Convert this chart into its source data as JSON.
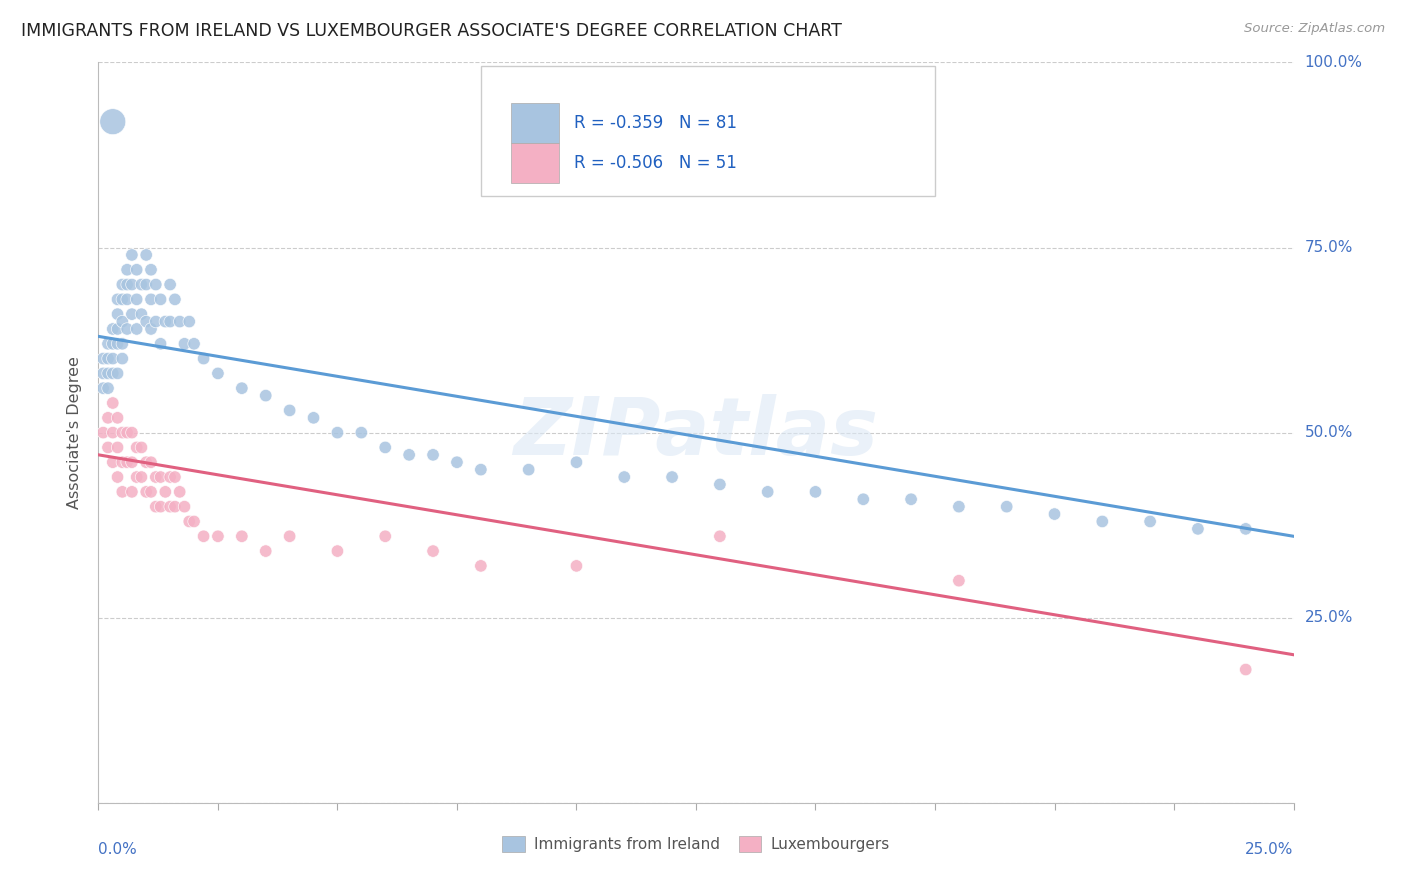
{
  "title": "IMMIGRANTS FROM IRELAND VS LUXEMBOURGER ASSOCIATE'S DEGREE CORRELATION CHART",
  "source": "Source: ZipAtlas.com",
  "ylabel": "Associate's Degree",
  "right_yticks": [
    "100.0%",
    "75.0%",
    "50.0%",
    "25.0%"
  ],
  "right_ytick_vals": [
    1.0,
    0.75,
    0.5,
    0.25
  ],
  "legend1_R": "-0.359",
  "legend1_N": "81",
  "legend2_R": "-0.506",
  "legend2_N": "51",
  "legend_label1": "Immigrants from Ireland",
  "legend_label2": "Luxembourgers",
  "blue_color": "#a8c4e0",
  "blue_line_color": "#5b9bd5",
  "pink_color": "#f4b0c4",
  "pink_line_color": "#e06080",
  "legend_R_color": "#2060c0",
  "watermark": "ZIPatlas",
  "xmin": 0.0,
  "xmax": 0.25,
  "ymin": 0.0,
  "ymax": 1.0,
  "blue_x": [
    0.001,
    0.001,
    0.001,
    0.002,
    0.002,
    0.002,
    0.002,
    0.003,
    0.003,
    0.003,
    0.003,
    0.004,
    0.004,
    0.004,
    0.004,
    0.004,
    0.005,
    0.005,
    0.005,
    0.005,
    0.005,
    0.006,
    0.006,
    0.006,
    0.006,
    0.007,
    0.007,
    0.007,
    0.008,
    0.008,
    0.008,
    0.009,
    0.009,
    0.01,
    0.01,
    0.01,
    0.011,
    0.011,
    0.011,
    0.012,
    0.012,
    0.013,
    0.013,
    0.014,
    0.015,
    0.015,
    0.016,
    0.017,
    0.018,
    0.019,
    0.02,
    0.022,
    0.025,
    0.03,
    0.035,
    0.04,
    0.045,
    0.05,
    0.055,
    0.06,
    0.065,
    0.07,
    0.075,
    0.08,
    0.09,
    0.1,
    0.11,
    0.12,
    0.13,
    0.14,
    0.15,
    0.16,
    0.17,
    0.18,
    0.19,
    0.2,
    0.21,
    0.22,
    0.23,
    0.24,
    0.003
  ],
  "blue_y": [
    0.6,
    0.58,
    0.56,
    0.6,
    0.62,
    0.58,
    0.56,
    0.64,
    0.62,
    0.6,
    0.58,
    0.68,
    0.66,
    0.64,
    0.62,
    0.58,
    0.7,
    0.68,
    0.65,
    0.62,
    0.6,
    0.72,
    0.7,
    0.68,
    0.64,
    0.74,
    0.7,
    0.66,
    0.72,
    0.68,
    0.64,
    0.7,
    0.66,
    0.74,
    0.7,
    0.65,
    0.72,
    0.68,
    0.64,
    0.7,
    0.65,
    0.68,
    0.62,
    0.65,
    0.7,
    0.65,
    0.68,
    0.65,
    0.62,
    0.65,
    0.62,
    0.6,
    0.58,
    0.56,
    0.55,
    0.53,
    0.52,
    0.5,
    0.5,
    0.48,
    0.47,
    0.47,
    0.46,
    0.45,
    0.45,
    0.46,
    0.44,
    0.44,
    0.43,
    0.42,
    0.42,
    0.41,
    0.41,
    0.4,
    0.4,
    0.39,
    0.38,
    0.38,
    0.37,
    0.37,
    0.92
  ],
  "blue_sizes_scale": [
    80,
    80,
    80,
    80,
    80,
    80,
    80,
    80,
    80,
    80,
    80,
    80,
    80,
    80,
    80,
    80,
    80,
    80,
    80,
    80,
    80,
    80,
    80,
    80,
    80,
    80,
    80,
    80,
    80,
    80,
    80,
    80,
    80,
    80,
    80,
    80,
    80,
    80,
    80,
    80,
    80,
    80,
    80,
    80,
    80,
    80,
    80,
    80,
    80,
    80,
    80,
    80,
    80,
    80,
    80,
    80,
    80,
    80,
    80,
    80,
    80,
    80,
    80,
    80,
    80,
    80,
    80,
    80,
    80,
    80,
    80,
    80,
    80,
    80,
    80,
    80,
    80,
    80,
    80,
    80,
    350
  ],
  "pink_x": [
    0.001,
    0.002,
    0.002,
    0.003,
    0.003,
    0.003,
    0.004,
    0.004,
    0.004,
    0.005,
    0.005,
    0.005,
    0.006,
    0.006,
    0.007,
    0.007,
    0.007,
    0.008,
    0.008,
    0.009,
    0.009,
    0.01,
    0.01,
    0.011,
    0.011,
    0.012,
    0.012,
    0.013,
    0.013,
    0.014,
    0.015,
    0.015,
    0.016,
    0.016,
    0.017,
    0.018,
    0.019,
    0.02,
    0.022,
    0.025,
    0.03,
    0.035,
    0.04,
    0.05,
    0.06,
    0.07,
    0.08,
    0.1,
    0.13,
    0.18,
    0.24
  ],
  "pink_y": [
    0.5,
    0.52,
    0.48,
    0.54,
    0.5,
    0.46,
    0.52,
    0.48,
    0.44,
    0.5,
    0.46,
    0.42,
    0.5,
    0.46,
    0.5,
    0.46,
    0.42,
    0.48,
    0.44,
    0.48,
    0.44,
    0.46,
    0.42,
    0.46,
    0.42,
    0.44,
    0.4,
    0.44,
    0.4,
    0.42,
    0.44,
    0.4,
    0.44,
    0.4,
    0.42,
    0.4,
    0.38,
    0.38,
    0.36,
    0.36,
    0.36,
    0.34,
    0.36,
    0.34,
    0.36,
    0.34,
    0.32,
    0.32,
    0.36,
    0.3,
    0.18
  ],
  "pink_sizes_scale": [
    80,
    80,
    80,
    80,
    80,
    80,
    80,
    80,
    80,
    80,
    80,
    80,
    80,
    80,
    80,
    80,
    80,
    80,
    80,
    80,
    80,
    80,
    80,
    80,
    80,
    80,
    80,
    80,
    80,
    80,
    80,
    80,
    80,
    80,
    80,
    80,
    80,
    80,
    80,
    80,
    80,
    80,
    80,
    80,
    80,
    80,
    80,
    80,
    80,
    80,
    80
  ],
  "blue_line_x0": 0.0,
  "blue_line_x1": 0.25,
  "blue_line_y0": 0.63,
  "blue_line_y1": 0.36,
  "pink_line_x0": 0.0,
  "pink_line_x1": 0.25,
  "pink_line_y0": 0.47,
  "pink_line_y1": 0.2
}
